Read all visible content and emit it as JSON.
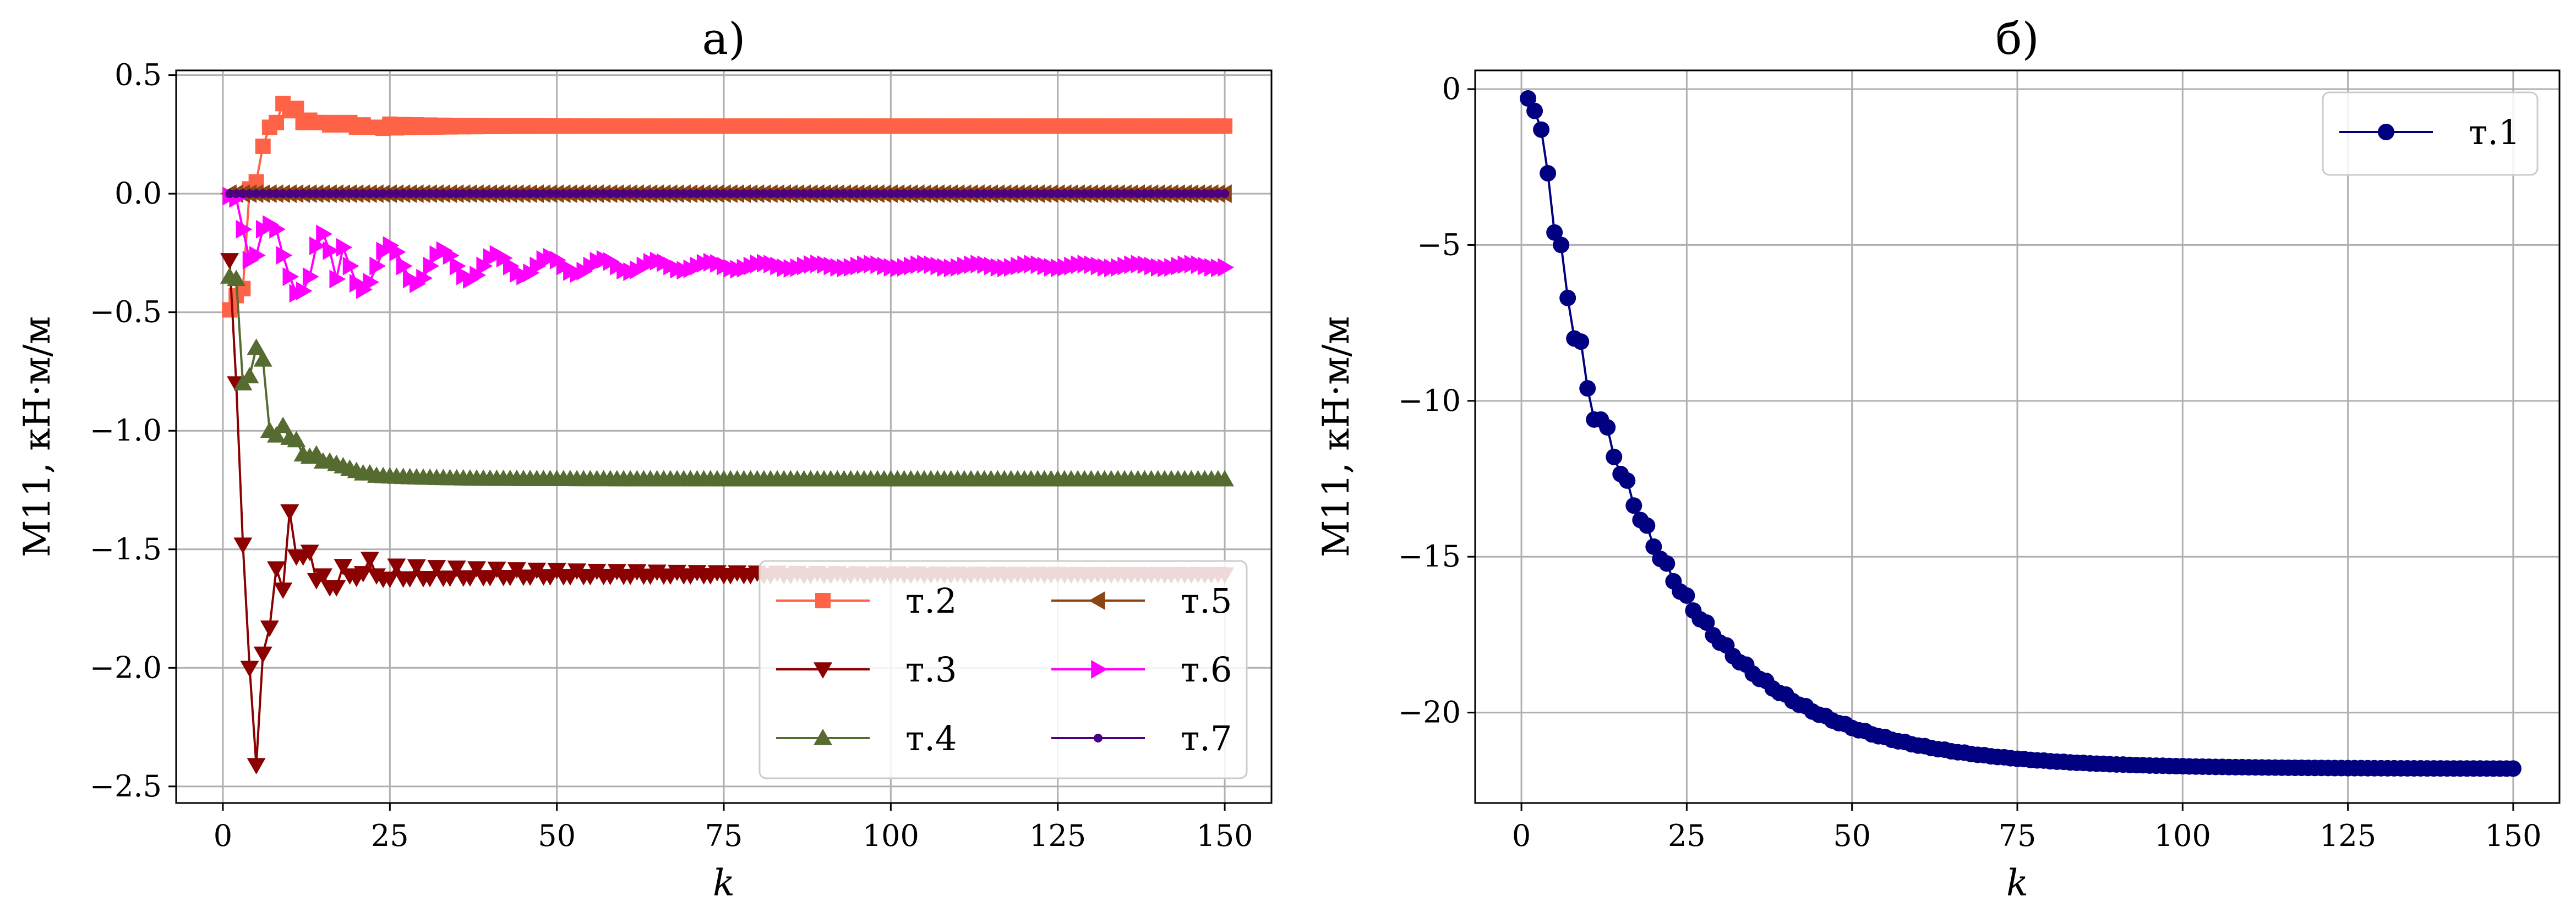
{
  "chart_data": [
    {
      "type": "line",
      "title": "а)",
      "xlabel": "k",
      "ylabel": "M11, кН·м/м",
      "xlim": [
        -7,
        157
      ],
      "ylim": [
        -2.57,
        0.52
      ],
      "xticks": [
        0,
        25,
        50,
        75,
        100,
        125,
        150
      ],
      "yticks": [
        0.5,
        0.0,
        -0.5,
        -1.0,
        -1.5,
        -2.0,
        -2.5
      ],
      "xtick_labels": [
        "0",
        "25",
        "50",
        "75",
        "100",
        "125",
        "150"
      ],
      "ytick_labels": [
        "0.5",
        "0.0",
        "−0.5",
        "−1.0",
        "−1.5",
        "−2.0",
        "−2.5"
      ],
      "grid": true,
      "legend_position": "lower-right",
      "legend_columns": 2,
      "k_range": [
        1,
        150
      ],
      "series": [
        {
          "name": "т.2",
          "color": "#ff6347",
          "marker": "square",
          "first_values": [
            -0.49,
            -0.43,
            -0.4,
            0.02,
            0.05,
            0.2,
            0.28,
            0.3,
            0.38,
            0.35,
            0.36,
            0.3,
            0.31,
            0.3,
            0.3,
            0.29,
            0.3,
            0.29,
            0.3,
            0.28,
            0.29,
            0.28,
            0.28
          ],
          "final_value": 0.285,
          "tail": "damped-oscillation",
          "tail_amplitude": 0.01,
          "tail_period": 2,
          "tail_decay": 0.9
        },
        {
          "name": "т.3",
          "color": "#8b0000",
          "marker": "triangle-down",
          "first_values": [
            -0.28,
            -0.8,
            -1.48,
            -2.0,
            -2.41,
            -1.94,
            -1.83,
            -1.58,
            -1.67,
            -1.34,
            -1.53,
            -1.53,
            -1.51,
            -1.63,
            -1.61,
            -1.66,
            -1.66,
            -1.57,
            -1.61,
            -1.62,
            -1.6,
            -1.54,
            -1.61
          ],
          "final_value": -1.605,
          "tail": "damped-oscillation",
          "tail_amplitude": 0.04,
          "tail_period": 3,
          "tail_decay": 0.97
        },
        {
          "name": "т.4",
          "color": "#556b2f",
          "marker": "triangle-up",
          "first_values": [
            -0.35,
            -0.36,
            -0.8,
            -0.77,
            -0.65,
            -0.7,
            -1.0,
            -1.02,
            -0.98,
            -1.03,
            -1.04,
            -1.1,
            -1.11,
            -1.1,
            -1.13,
            -1.13,
            -1.14,
            -1.15,
            -1.16,
            -1.17,
            -1.18,
            -1.18,
            -1.19
          ],
          "final_value": -1.205,
          "tail": "exponential",
          "tail_decay": 0.9
        },
        {
          "name": "т.5",
          "color": "#8b4513",
          "marker": "triangle-left",
          "first_values": [
            0.0,
            0.0,
            0.0
          ],
          "final_value": 0.0,
          "tail": "constant"
        },
        {
          "name": "т.6",
          "color": "#ff00ff",
          "marker": "triangle-right",
          "first_values": [
            -0.01,
            -0.02,
            -0.15,
            -0.28,
            -0.26,
            -0.15,
            -0.13,
            -0.15,
            -0.26,
            -0.35,
            -0.42,
            -0.41,
            -0.35,
            -0.22,
            -0.17,
            -0.24,
            -0.36
          ],
          "final_value": -0.305,
          "tail": "damped-oscillation",
          "tail_amplitude": 0.115,
          "tail_period": 8,
          "tail_decay": 0.965,
          "tail_amplitude_min": 0.008
        },
        {
          "name": "т.7",
          "color": "#4b0082",
          "marker": "dot",
          "first_values": [
            0.0,
            0.0,
            0.0
          ],
          "final_value": 0.0,
          "tail": "constant"
        }
      ]
    },
    {
      "type": "line",
      "title": "б)",
      "xlabel": "k",
      "ylabel": "M11, кН·м/м",
      "xlim": [
        -7,
        157
      ],
      "ylim": [
        -22.9,
        0.6
      ],
      "xticks": [
        0,
        25,
        50,
        75,
        100,
        125,
        150
      ],
      "yticks": [
        0,
        -5,
        -10,
        -15,
        -20
      ],
      "xtick_labels": [
        "0",
        "25",
        "50",
        "75",
        "100",
        "125",
        "150"
      ],
      "ytick_labels": [
        "0",
        "−5",
        "−10",
        "−15",
        "−20"
      ],
      "grid": true,
      "legend_position": "top-right",
      "legend_columns": 1,
      "k_range": [
        1,
        150
      ],
      "series": [
        {
          "name": "т.1",
          "color": "#000080",
          "marker": "circle",
          "first_values": [
            -0.3,
            -0.7,
            -1.3,
            -2.7,
            -4.6,
            -5.0,
            -6.7,
            -8.0,
            -8.1,
            -9.6,
            -10.6,
            -10.6
          ],
          "final_value": -21.8,
          "tail": "exponential",
          "tail_decay": 0.945,
          "tail_step_pattern": true
        }
      ]
    }
  ]
}
